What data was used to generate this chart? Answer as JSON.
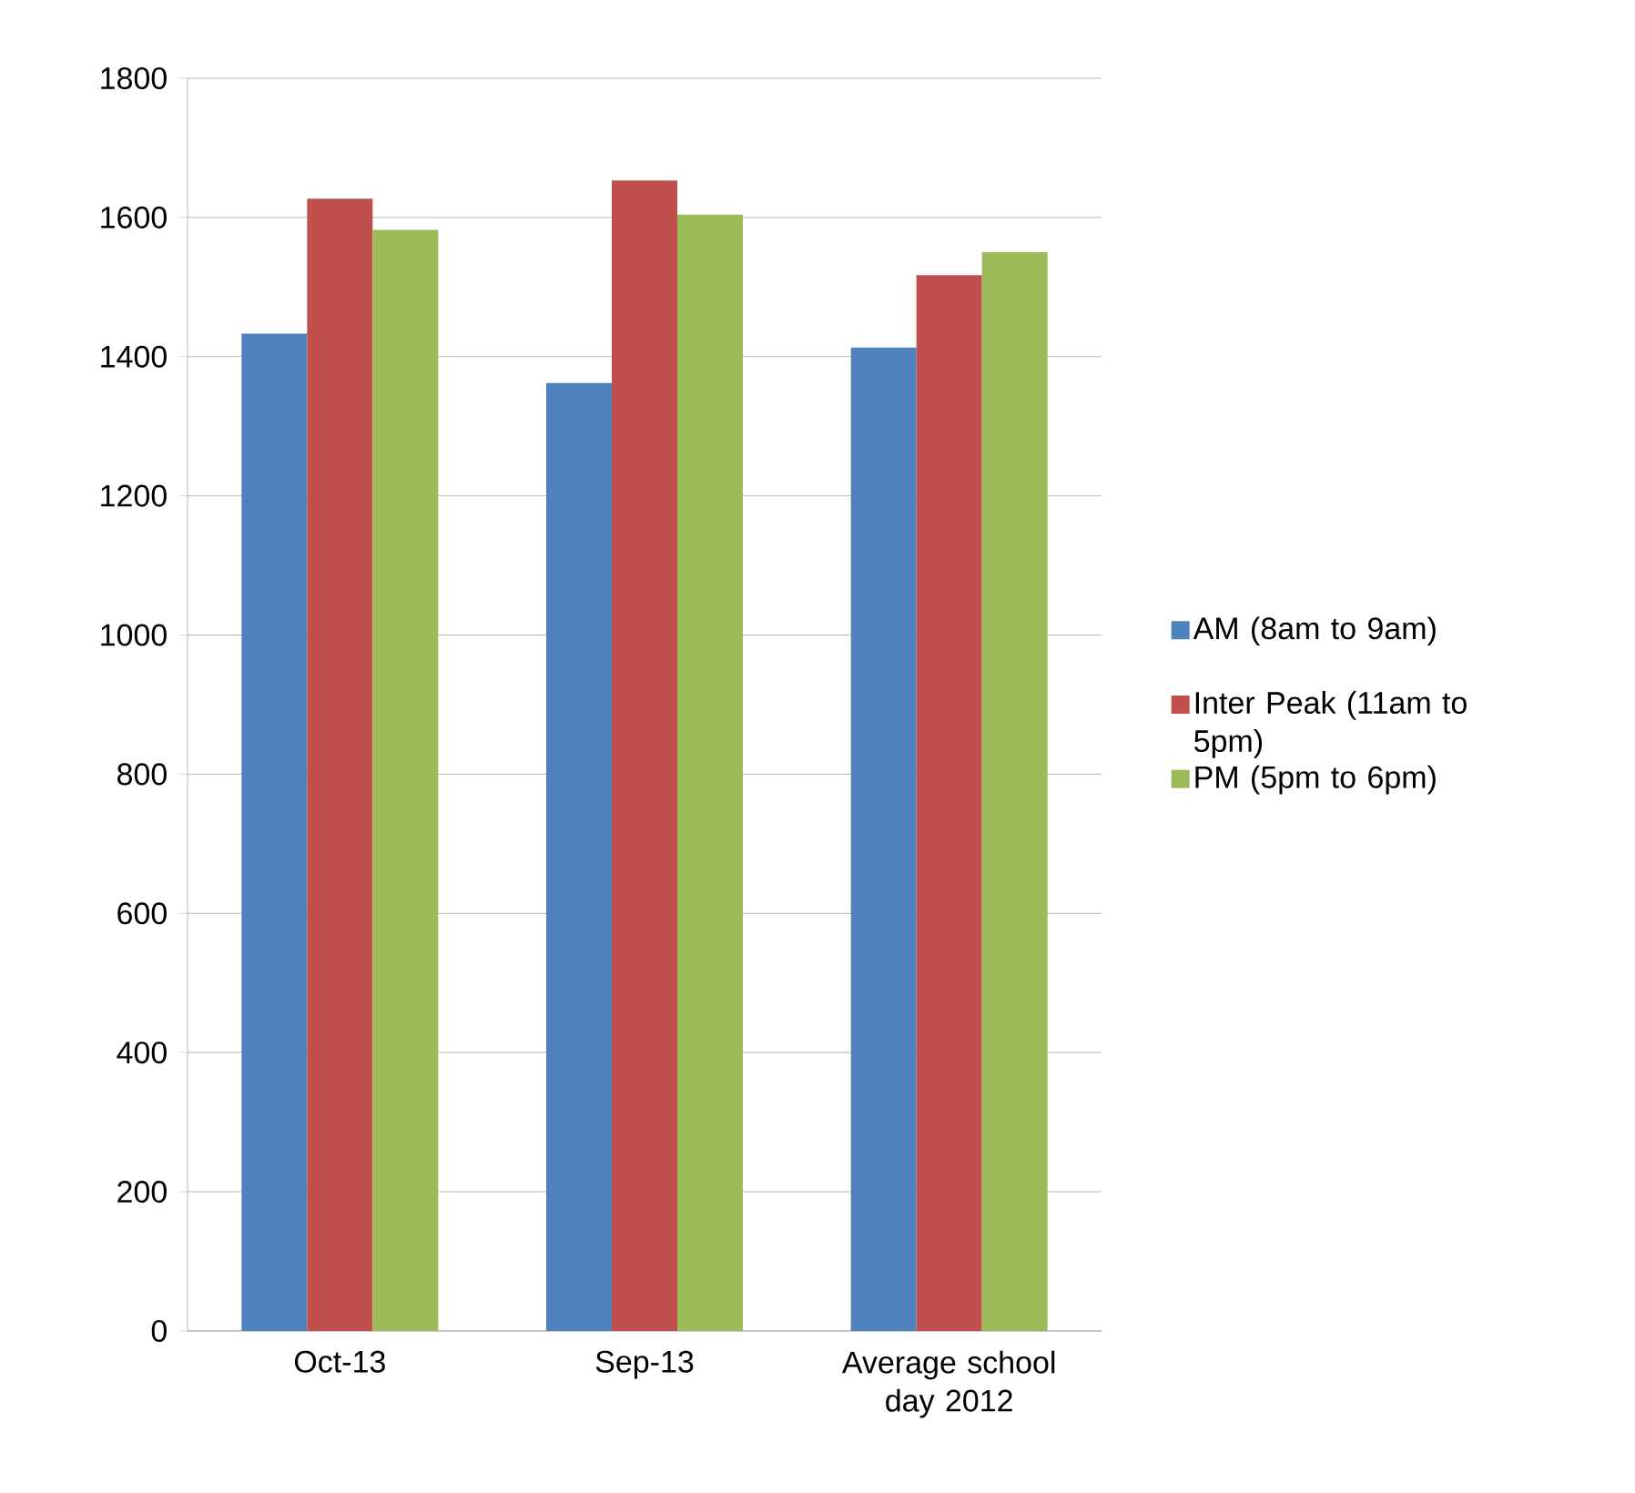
{
  "chart_data": {
    "type": "bar",
    "categories": [
      "Oct-13",
      "Sep-13",
      "Average school day 2012"
    ],
    "series": [
      {
        "name": "AM (8am to 9am)",
        "color": "#4f81bd",
        "values": [
          1433,
          1362,
          1413
        ]
      },
      {
        "name": "Inter Peak (11am to 5pm)",
        "color": "#c0504d",
        "values": [
          1627,
          1653,
          1517
        ]
      },
      {
        "name": "PM (5pm to 6pm)",
        "color": "#9bbb59",
        "values": [
          1582,
          1604,
          1550
        ]
      }
    ],
    "ylim": [
      0,
      1800
    ],
    "yticks": [
      0,
      200,
      400,
      600,
      800,
      1000,
      1200,
      1400,
      1600,
      1800
    ],
    "grid": "y",
    "legend": "right"
  }
}
